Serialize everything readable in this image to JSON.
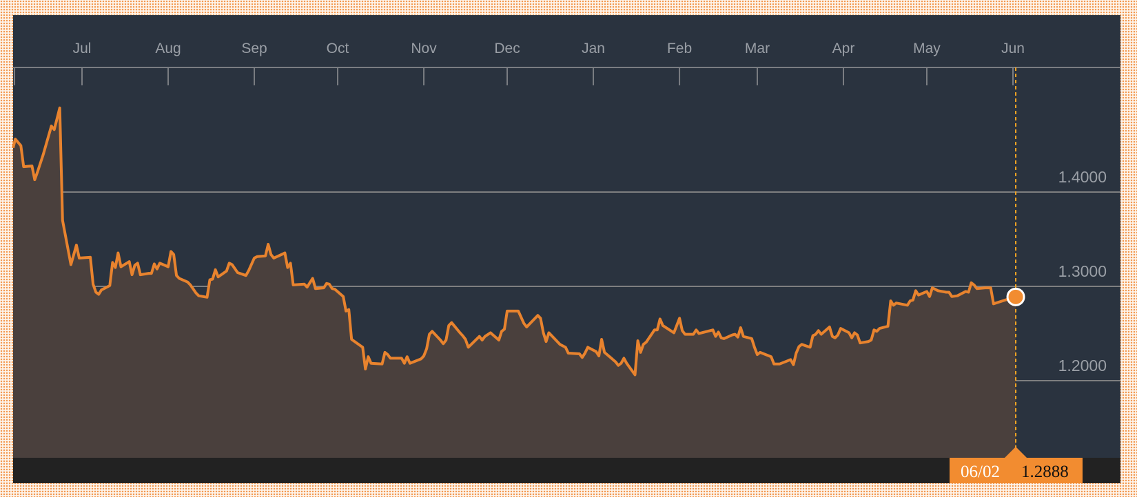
{
  "chart_data": {
    "type": "area",
    "title": "",
    "xlabel": "",
    "ylabel": "",
    "x_ticks": [
      "Jul",
      "Aug",
      "Sep",
      "Oct",
      "Nov",
      "Dec",
      "Jan",
      "Feb",
      "Mar",
      "Apr",
      "May",
      "Jun"
    ],
    "x_tick_dates": [
      "2016-07-01",
      "2016-08-01",
      "2016-09-01",
      "2016-10-01",
      "2016-11-01",
      "2016-12-01",
      "2017-01-01",
      "2017-02-01",
      "2017-03-01",
      "2017-04-01",
      "2017-05-01",
      "2017-06-01"
    ],
    "y_ticks": [
      "1.2000",
      "1.3000",
      "1.4000"
    ],
    "y_tick_values": [
      1.2,
      1.3,
      1.4
    ],
    "y_axis_position": "right",
    "grid": "horizontal",
    "colors": {
      "line": "#e8832e",
      "fill": "#4a403d",
      "background": "#2a333f",
      "marker": "#f28c30",
      "crosshair": "#f5a623"
    },
    "series": [
      {
        "points": [
          [
            "2016-06-06",
            1.4469
          ],
          [
            "2016-06-07",
            1.4562
          ],
          [
            "2016-06-09",
            1.4492
          ],
          [
            "2016-06-10",
            1.4269
          ],
          [
            "2016-06-13",
            1.4277
          ],
          [
            "2016-06-14",
            1.4131
          ],
          [
            "2016-06-15",
            1.4215
          ],
          [
            "2016-06-17",
            1.4392
          ],
          [
            "2016-06-20",
            1.47
          ],
          [
            "2016-06-21",
            1.4662
          ],
          [
            "2016-06-22",
            1.4777
          ],
          [
            "2016-06-23",
            1.4892
          ],
          [
            "2016-06-24",
            1.37
          ],
          [
            "2016-06-27",
            1.3231
          ],
          [
            "2016-06-29",
            1.3438
          ],
          [
            "2016-06-30",
            1.33
          ],
          [
            "2016-07-04",
            1.3308
          ],
          [
            "2016-07-05",
            1.3023
          ],
          [
            "2016-07-06",
            1.2938
          ],
          [
            "2016-07-07",
            1.2915
          ],
          [
            "2016-07-08",
            1.2962
          ],
          [
            "2016-07-11",
            1.3008
          ],
          [
            "2016-07-12",
            1.3254
          ],
          [
            "2016-07-13",
            1.32
          ],
          [
            "2016-07-14",
            1.3354
          ],
          [
            "2016-07-15",
            1.3208
          ],
          [
            "2016-07-18",
            1.3262
          ],
          [
            "2016-07-19",
            1.3123
          ],
          [
            "2016-07-20",
            1.3223
          ],
          [
            "2016-07-21",
            1.3246
          ],
          [
            "2016-07-22",
            1.3123
          ],
          [
            "2016-07-25",
            1.3138
          ],
          [
            "2016-07-26",
            1.3138
          ],
          [
            "2016-07-27",
            1.3238
          ],
          [
            "2016-07-28",
            1.3185
          ],
          [
            "2016-07-29",
            1.3246
          ],
          [
            "2016-08-01",
            1.3208
          ],
          [
            "2016-08-02",
            1.3369
          ],
          [
            "2016-08-03",
            1.3338
          ],
          [
            "2016-08-04",
            1.3115
          ],
          [
            "2016-08-05",
            1.3085
          ],
          [
            "2016-08-08",
            1.3046
          ],
          [
            "2016-08-09",
            1.3015
          ],
          [
            "2016-08-11",
            1.2931
          ],
          [
            "2016-08-12",
            1.29
          ],
          [
            "2016-08-15",
            1.2885
          ],
          [
            "2016-08-16",
            1.3069
          ],
          [
            "2016-08-17",
            1.3077
          ],
          [
            "2016-08-18",
            1.3177
          ],
          [
            "2016-08-19",
            1.31
          ],
          [
            "2016-08-22",
            1.3162
          ],
          [
            "2016-08-23",
            1.3246
          ],
          [
            "2016-08-24",
            1.3231
          ],
          [
            "2016-08-26",
            1.3146
          ],
          [
            "2016-08-29",
            1.3115
          ],
          [
            "2016-08-30",
            1.3169
          ],
          [
            "2016-09-01",
            1.33
          ],
          [
            "2016-09-02",
            1.3315
          ],
          [
            "2016-09-05",
            1.3323
          ],
          [
            "2016-09-06",
            1.3446
          ],
          [
            "2016-09-07",
            1.3338
          ],
          [
            "2016-09-08",
            1.33
          ],
          [
            "2016-09-12",
            1.3354
          ],
          [
            "2016-09-13",
            1.32
          ],
          [
            "2016-09-14",
            1.3246
          ],
          [
            "2016-09-15",
            1.3015
          ],
          [
            "2016-09-19",
            1.3023
          ],
          [
            "2016-09-20",
            1.2992
          ],
          [
            "2016-09-22",
            1.3085
          ],
          [
            "2016-09-23",
            1.2977
          ],
          [
            "2016-09-26",
            1.2985
          ],
          [
            "2016-09-27",
            1.3031
          ],
          [
            "2016-09-28",
            1.3023
          ],
          [
            "2016-09-29",
            1.2977
          ],
          [
            "2016-09-30",
            1.2969
          ],
          [
            "2016-10-03",
            1.2892
          ],
          [
            "2016-10-04",
            1.2738
          ],
          [
            "2016-10-05",
            1.2754
          ],
          [
            "2016-10-06",
            1.2438
          ],
          [
            "2016-10-10",
            1.2354
          ],
          [
            "2016-10-11",
            1.2123
          ],
          [
            "2016-10-12",
            1.2254
          ],
          [
            "2016-10-13",
            1.2185
          ],
          [
            "2016-10-17",
            1.2177
          ],
          [
            "2016-10-18",
            1.23
          ],
          [
            "2016-10-19",
            1.2277
          ],
          [
            "2016-10-20",
            1.2238
          ],
          [
            "2016-10-24",
            1.2238
          ],
          [
            "2016-10-25",
            1.2185
          ],
          [
            "2016-10-26",
            1.2254
          ],
          [
            "2016-10-27",
            1.2185
          ],
          [
            "2016-10-31",
            1.2231
          ],
          [
            "2016-11-01",
            1.2262
          ],
          [
            "2016-11-02",
            1.2338
          ],
          [
            "2016-11-03",
            1.2492
          ],
          [
            "2016-11-04",
            1.2523
          ],
          [
            "2016-11-07",
            1.2431
          ],
          [
            "2016-11-08",
            1.2392
          ],
          [
            "2016-11-09",
            1.2431
          ],
          [
            "2016-11-10",
            1.2585
          ],
          [
            "2016-11-11",
            1.2615
          ],
          [
            "2016-11-14",
            1.2508
          ],
          [
            "2016-11-15",
            1.2477
          ],
          [
            "2016-11-16",
            1.2438
          ],
          [
            "2016-11-17",
            1.2354
          ],
          [
            "2016-11-21",
            1.2469
          ],
          [
            "2016-11-22",
            1.2431
          ],
          [
            "2016-11-23",
            1.2469
          ],
          [
            "2016-11-25",
            1.2508
          ],
          [
            "2016-11-28",
            1.2431
          ],
          [
            "2016-11-29",
            1.2523
          ],
          [
            "2016-11-30",
            1.2546
          ],
          [
            "2016-12-01",
            1.2738
          ],
          [
            "2016-12-05",
            1.2738
          ],
          [
            "2016-12-07",
            1.2608
          ],
          [
            "2016-12-08",
            1.2569
          ],
          [
            "2016-12-12",
            1.2692
          ],
          [
            "2016-12-13",
            1.2662
          ],
          [
            "2016-12-14",
            1.2508
          ],
          [
            "2016-12-15",
            1.2415
          ],
          [
            "2016-12-16",
            1.2508
          ],
          [
            "2016-12-20",
            1.2385
          ],
          [
            "2016-12-22",
            1.2354
          ],
          [
            "2016-12-23",
            1.2292
          ],
          [
            "2016-12-27",
            1.2285
          ],
          [
            "2016-12-28",
            1.2246
          ],
          [
            "2016-12-29",
            1.2292
          ],
          [
            "2016-12-30",
            1.2354
          ],
          [
            "2017-01-02",
            1.2308
          ],
          [
            "2017-01-03",
            1.2262
          ],
          [
            "2017-01-04",
            1.2438
          ],
          [
            "2017-01-05",
            1.23
          ],
          [
            "2017-01-09",
            1.22
          ],
          [
            "2017-01-10",
            1.2162
          ],
          [
            "2017-01-11",
            1.2185
          ],
          [
            "2017-01-12",
            1.2238
          ],
          [
            "2017-01-13",
            1.2185
          ],
          [
            "2017-01-16",
            1.2062
          ],
          [
            "2017-01-17",
            1.2423
          ],
          [
            "2017-01-18",
            1.23
          ],
          [
            "2017-01-19",
            1.2385
          ],
          [
            "2017-01-20",
            1.2408
          ],
          [
            "2017-01-23",
            1.2538
          ],
          [
            "2017-01-24",
            1.2538
          ],
          [
            "2017-01-25",
            1.2654
          ],
          [
            "2017-01-26",
            1.2585
          ],
          [
            "2017-01-30",
            1.2508
          ],
          [
            "2017-02-01",
            1.2662
          ],
          [
            "2017-02-02",
            1.2531
          ],
          [
            "2017-02-03",
            1.2492
          ],
          [
            "2017-02-06",
            1.2492
          ],
          [
            "2017-02-07",
            1.2538
          ],
          [
            "2017-02-08",
            1.25
          ],
          [
            "2017-02-09",
            1.2508
          ],
          [
            "2017-02-13",
            1.2538
          ],
          [
            "2017-02-14",
            1.2469
          ],
          [
            "2017-02-15",
            1.2515
          ],
          [
            "2017-02-16",
            1.2454
          ],
          [
            "2017-02-17",
            1.2446
          ],
          [
            "2017-02-20",
            1.2485
          ],
          [
            "2017-02-21",
            1.2492
          ],
          [
            "2017-02-22",
            1.2462
          ],
          [
            "2017-02-23",
            1.2562
          ],
          [
            "2017-02-24",
            1.2469
          ],
          [
            "2017-02-27",
            1.2446
          ],
          [
            "2017-02-28",
            1.2354
          ],
          [
            "2017-03-01",
            1.2277
          ],
          [
            "2017-03-02",
            1.23
          ],
          [
            "2017-03-06",
            1.2254
          ],
          [
            "2017-03-07",
            1.2177
          ],
          [
            "2017-03-09",
            1.2177
          ],
          [
            "2017-03-13",
            1.2223
          ],
          [
            "2017-03-14",
            1.2169
          ],
          [
            "2017-03-15",
            1.2292
          ],
          [
            "2017-03-16",
            1.2362
          ],
          [
            "2017-03-17",
            1.2385
          ],
          [
            "2017-03-20",
            1.2354
          ],
          [
            "2017-03-21",
            1.2477
          ],
          [
            "2017-03-22",
            1.2492
          ],
          [
            "2017-03-23",
            1.2531
          ],
          [
            "2017-03-24",
            1.2492
          ],
          [
            "2017-03-27",
            1.2569
          ],
          [
            "2017-03-28",
            1.2469
          ],
          [
            "2017-03-29",
            1.2454
          ],
          [
            "2017-03-30",
            1.2485
          ],
          [
            "2017-03-31",
            1.2554
          ],
          [
            "2017-04-03",
            1.2508
          ],
          [
            "2017-04-04",
            1.2454
          ],
          [
            "2017-04-05",
            1.2508
          ],
          [
            "2017-04-06",
            1.2485
          ],
          [
            "2017-04-07",
            1.24
          ],
          [
            "2017-04-10",
            1.2415
          ],
          [
            "2017-04-11",
            1.2431
          ],
          [
            "2017-04-12",
            1.2538
          ],
          [
            "2017-04-13",
            1.2523
          ],
          [
            "2017-04-14",
            1.2554
          ],
          [
            "2017-04-17",
            1.2577
          ],
          [
            "2017-04-18",
            1.2846
          ],
          [
            "2017-04-19",
            1.28
          ],
          [
            "2017-04-20",
            1.2823
          ],
          [
            "2017-04-24",
            1.28
          ],
          [
            "2017-04-25",
            1.2846
          ],
          [
            "2017-04-26",
            1.2854
          ],
          [
            "2017-04-27",
            1.2954
          ],
          [
            "2017-04-28",
            1.2908
          ],
          [
            "2017-05-01",
            1.2946
          ],
          [
            "2017-05-02",
            1.2892
          ],
          [
            "2017-05-03",
            1.2985
          ],
          [
            "2017-05-05",
            1.2954
          ],
          [
            "2017-05-08",
            1.2938
          ],
          [
            "2017-05-09",
            1.2938
          ],
          [
            "2017-05-10",
            1.2892
          ],
          [
            "2017-05-12",
            1.29
          ],
          [
            "2017-05-15",
            1.2946
          ],
          [
            "2017-05-16",
            1.2938
          ],
          [
            "2017-05-17",
            1.3038
          ],
          [
            "2017-05-18",
            1.3015
          ],
          [
            "2017-05-19",
            1.2977
          ],
          [
            "2017-05-22",
            1.2985
          ],
          [
            "2017-05-24",
            1.2985
          ],
          [
            "2017-05-25",
            1.2815
          ],
          [
            "2017-05-30",
            1.2862
          ],
          [
            "2017-06-02",
            1.2888
          ]
        ]
      }
    ],
    "highlight": {
      "date_label": "06/02",
      "value_label": "1.2888",
      "date": "2017-06-02",
      "value": 1.2888
    }
  }
}
